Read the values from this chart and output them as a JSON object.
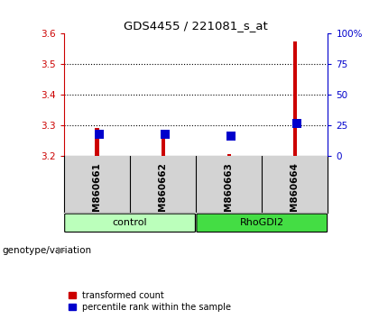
{
  "title": "GDS4455 / 221081_s_at",
  "samples": [
    "GSM860661",
    "GSM860662",
    "GSM860663",
    "GSM860664"
  ],
  "red_values": [
    3.29,
    3.28,
    3.205,
    3.575
  ],
  "blue_values": [
    3.27,
    3.27,
    3.265,
    3.305
  ],
  "ylim_left": [
    3.2,
    3.6
  ],
  "ylim_right": [
    0,
    100
  ],
  "yticks_left": [
    3.2,
    3.3,
    3.4,
    3.5,
    3.6
  ],
  "yticks_right": [
    0,
    25,
    50,
    75,
    100
  ],
  "ytick_labels_right": [
    "0",
    "25",
    "50",
    "75",
    "100%"
  ],
  "bar_width": 0.055,
  "dot_size": 42,
  "genotype_label": "genotype/variation",
  "legend_red": "transformed count",
  "legend_blue": "percentile rank within the sample",
  "red_color": "#cc0000",
  "blue_color": "#0000cc",
  "axis_left_color": "#cc0000",
  "axis_right_color": "#0000cc",
  "plot_bg": "white",
  "sample_panel_bg": "#d3d3d3",
  "control_color": "#bbffbb",
  "rhogdi2_color": "#44dd44",
  "group_border_color": "black",
  "x_positions": [
    0.5,
    1.5,
    2.5,
    3.5
  ],
  "gridline_yticks": [
    3.3,
    3.4,
    3.5
  ]
}
